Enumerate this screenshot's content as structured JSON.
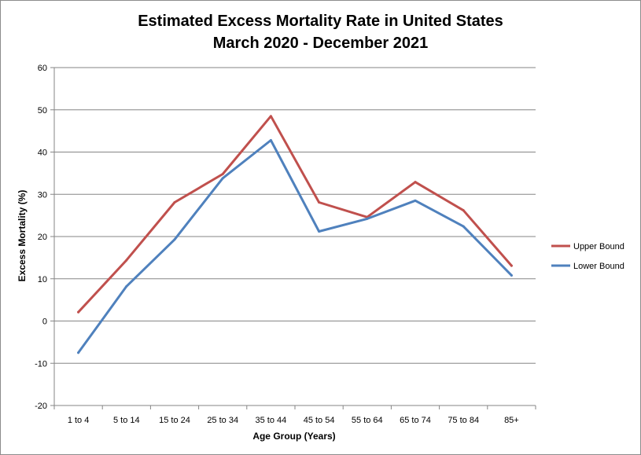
{
  "chart_data": {
    "type": "line",
    "title": "Estimated Excess Mortality Rate in United States",
    "subtitle": "March 2020 - December 2021",
    "xlabel": "Age Group (Years)",
    "ylabel": "Excess Mortality (%)",
    "categories": [
      "1 to 4",
      "5 to 14",
      "15 to 24",
      "25 to 34",
      "35 to 44",
      "45 to 54",
      "55 to 64",
      "65 to 74",
      "75 to 84",
      "85+"
    ],
    "ylim": [
      -20,
      60
    ],
    "yticks": [
      -20,
      -10,
      0,
      10,
      20,
      30,
      40,
      50,
      60
    ],
    "grid": true,
    "legend_position": "right",
    "series": [
      {
        "name": "Upper Bound",
        "color": "#c0504d",
        "values": [
          2.1,
          14.4,
          28.1,
          34.8,
          48.5,
          28.1,
          24.6,
          32.9,
          26.2,
          13.1
        ]
      },
      {
        "name": "Lower Bound",
        "color": "#4f81bd",
        "values": [
          -7.5,
          8.2,
          19.3,
          33.8,
          42.8,
          21.2,
          24.2,
          28.5,
          22.4,
          10.8
        ]
      }
    ]
  }
}
